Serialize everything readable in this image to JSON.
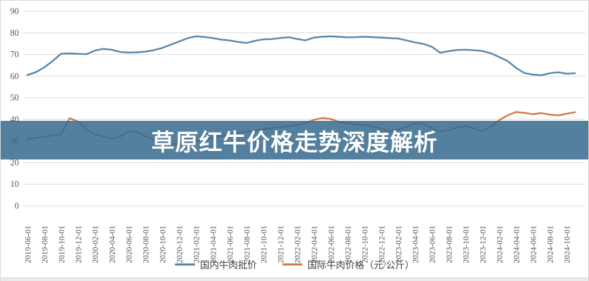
{
  "page": {
    "background": "#ffffff",
    "border_color": "#d9d9d9",
    "gridline_color": "#dcdcdc",
    "axis_label_color": "#595959"
  },
  "banner": {
    "title": "草原红牛价格走势深度解析",
    "bg_rgba": "rgba(54,106,142,0.85)",
    "text_color": "#ffffff"
  },
  "legend": [
    {
      "label": "国内牛肉批价",
      "color": "#5688AE"
    },
    {
      "label": "国际牛肉价格（元/公斤）",
      "color": "#CD7B4B"
    }
  ],
  "chart_data": {
    "type": "line",
    "title": "草原红牛价格走势深度解析",
    "xlabel": "",
    "ylabel": "",
    "ylim": [
      0,
      90
    ],
    "grid": true,
    "legend_position": "bottom",
    "y_ticks": [
      0,
      10,
      20,
      30,
      40,
      50,
      60,
      70,
      80,
      90
    ],
    "x_tick_labels": [
      "2019-06-01",
      "2019-08-01",
      "2019-10-01",
      "2019-12-01",
      "2020-02-01",
      "2020-04-01",
      "2020-06-01",
      "2020-08-01",
      "2020-10-01",
      "2020-12-01",
      "2021-02-01",
      "2021-04-01",
      "2021-06-01",
      "2021-08-01",
      "2021-10-01",
      "2021-12-01",
      "2022-02-01",
      "2022-04-01",
      "2022-06-01",
      "2022-08-01",
      "2022-10-01",
      "2022-12-01",
      "2023-02-01",
      "2023-04-01",
      "2023-06-01",
      "2023-08-01",
      "2023-10-01",
      "2023-12-01",
      "2024-02-01",
      "2024-04-01",
      "2024-06-01",
      "2024-08-01",
      "2024-10-01"
    ],
    "x": [
      "2019-06",
      "2019-07",
      "2019-08",
      "2019-09",
      "2019-10",
      "2019-11",
      "2019-12",
      "2020-01",
      "2020-02",
      "2020-03",
      "2020-04",
      "2020-05",
      "2020-06",
      "2020-07",
      "2020-08",
      "2020-09",
      "2020-10",
      "2020-11",
      "2020-12",
      "2021-01",
      "2021-02",
      "2021-03",
      "2021-04",
      "2021-05",
      "2021-06",
      "2021-07",
      "2021-08",
      "2021-09",
      "2021-10",
      "2021-11",
      "2021-12",
      "2022-01",
      "2022-02",
      "2022-03",
      "2022-04",
      "2022-05",
      "2022-06",
      "2022-07",
      "2022-08",
      "2022-09",
      "2022-10",
      "2022-11",
      "2022-12",
      "2023-01",
      "2023-02",
      "2023-03",
      "2023-04",
      "2023-05",
      "2023-06",
      "2023-07",
      "2023-08",
      "2023-09",
      "2023-10",
      "2023-11",
      "2023-12",
      "2024-01",
      "2024-02",
      "2024-03",
      "2024-04",
      "2024-05",
      "2024-06",
      "2024-07",
      "2024-08",
      "2024-09",
      "2024-10",
      "2024-11"
    ],
    "series": [
      {
        "name": "国内牛肉批价",
        "color": "#5688AE",
        "values": [
          60.5,
          61.8,
          64.0,
          67.0,
          70.3,
          70.5,
          70.3,
          70.1,
          71.8,
          72.6,
          72.2,
          71.2,
          70.9,
          71.0,
          71.3,
          72.0,
          73.0,
          74.5,
          76.0,
          77.5,
          78.4,
          78.1,
          77.6,
          76.9,
          76.5,
          75.8,
          75.3,
          76.3,
          77.0,
          77.1,
          77.6,
          78.0,
          77.2,
          76.5,
          77.8,
          78.2,
          78.4,
          78.2,
          77.9,
          78.0,
          78.2,
          78.0,
          77.8,
          77.6,
          77.4,
          76.5,
          75.6,
          74.9,
          73.6,
          70.8,
          71.5,
          72.1,
          72.2,
          72.0,
          71.6,
          70.6,
          68.8,
          67.0,
          63.8,
          61.4,
          60.7,
          60.4,
          61.3,
          61.8,
          61.1,
          61.3
        ]
      },
      {
        "name": "国际牛肉价格（元/公斤）",
        "color": "#CD7B4B",
        "values": [
          31.0,
          31.4,
          31.9,
          32.6,
          33.0,
          40.5,
          39.0,
          35.3,
          33.1,
          32.2,
          31.0,
          32.0,
          34.4,
          34.2,
          32.2,
          30.7,
          29.5,
          28.6,
          28.4,
          29.2,
          30.0,
          30.7,
          31.5,
          32.2,
          32.9,
          33.5,
          34.2,
          34.8,
          35.4,
          35.9,
          36.4,
          36.9,
          37.4,
          38.2,
          39.8,
          40.6,
          40.2,
          38.8,
          38.2,
          37.8,
          37.3,
          36.7,
          35.6,
          34.5,
          35.3,
          36.5,
          38.2,
          38.0,
          36.0,
          34.4,
          35.0,
          36.2,
          36.9,
          35.8,
          34.5,
          36.5,
          39.6,
          41.8,
          43.4,
          43.0,
          42.4,
          42.9,
          42.2,
          41.8,
          42.6,
          43.3
        ]
      }
    ]
  }
}
